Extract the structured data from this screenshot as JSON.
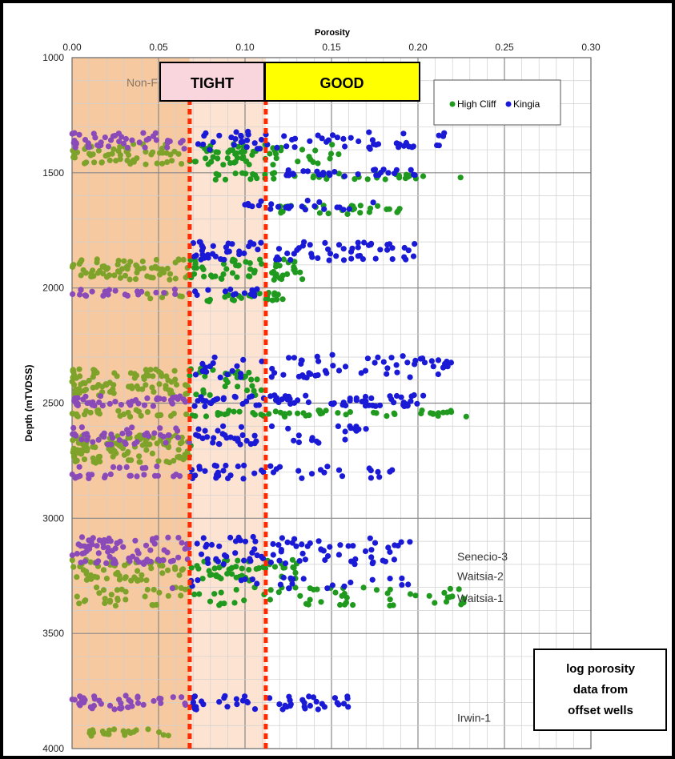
{
  "chart_data": {
    "type": "scatter",
    "title": "Porosity",
    "xlabel": "Porosity",
    "ylabel": "Depth (mTVDSS)",
    "xlim": [
      0.0,
      0.3
    ],
    "ylim": [
      1000,
      4000
    ],
    "x_ticks": [
      "0.00",
      "0.05",
      "0.10",
      "0.15",
      "0.20",
      "0.25",
      "0.30"
    ],
    "y_ticks": [
      "1000",
      "1500",
      "2000",
      "2500",
      "3000",
      "3500",
      "4000"
    ],
    "y_inverted": true,
    "grid": true,
    "legend_position": "top-right",
    "zones": [
      {
        "label": "Non-Res",
        "visible_text": "Non-F",
        "x_from": 0.0,
        "x_to": 0.068,
        "color": "#f7c9a0"
      },
      {
        "label": "TIGHT",
        "x_from": 0.068,
        "x_to": 0.112,
        "color": "#fde4d2"
      },
      {
        "label": "GOOD",
        "x_from": 0.112,
        "x_to": 0.2,
        "color": "#ffff00"
      }
    ],
    "cutoffs": [
      0.068,
      0.112
    ],
    "series": [
      {
        "name": "High Cliff",
        "color": "#1f9a1f",
        "clusters": [
          {
            "depth": 1420,
            "spread": 45,
            "x_min": 0.0,
            "x_max": 0.155,
            "n": 120
          },
          {
            "depth": 1515,
            "spread": 15,
            "x_min": 0.08,
            "x_max": 0.23,
            "n": 40
          },
          {
            "depth": 1660,
            "spread": 20,
            "x_min": 0.12,
            "x_max": 0.19,
            "n": 30
          },
          {
            "depth": 1920,
            "spread": 45,
            "x_min": 0.0,
            "x_max": 0.135,
            "n": 130
          },
          {
            "depth": 2040,
            "spread": 20,
            "x_min": 0.04,
            "x_max": 0.125,
            "n": 30
          },
          {
            "depth": 2410,
            "spread": 60,
            "x_min": 0.0,
            "x_max": 0.11,
            "n": 120
          },
          {
            "depth": 2545,
            "spread": 15,
            "x_min": 0.0,
            "x_max": 0.237,
            "n": 80
          },
          {
            "depth": 2700,
            "spread": 60,
            "x_min": 0.0,
            "x_max": 0.07,
            "n": 120
          },
          {
            "depth": 3230,
            "spread": 50,
            "x_min": 0.0,
            "x_max": 0.13,
            "n": 110
          },
          {
            "depth": 3340,
            "spread": 40,
            "x_min": 0.0,
            "x_max": 0.235,
            "n": 90
          },
          {
            "depth": 3930,
            "spread": 15,
            "x_min": 0.01,
            "x_max": 0.06,
            "n": 25
          }
        ]
      },
      {
        "name": "Kingia",
        "color": "#1a1ad6",
        "clusters": [
          {
            "depth": 1360,
            "spread": 40,
            "x_min": 0.0,
            "x_max": 0.218,
            "n": 110
          },
          {
            "depth": 1500,
            "spread": 15,
            "x_min": 0.12,
            "x_max": 0.2,
            "n": 30
          },
          {
            "depth": 1640,
            "spread": 20,
            "x_min": 0.1,
            "x_max": 0.18,
            "n": 25
          },
          {
            "depth": 1840,
            "spread": 40,
            "x_min": 0.07,
            "x_max": 0.2,
            "n": 80
          },
          {
            "depth": 2020,
            "spread": 15,
            "x_min": 0.0,
            "x_max": 0.11,
            "n": 35
          },
          {
            "depth": 2340,
            "spread": 50,
            "x_min": 0.07,
            "x_max": 0.22,
            "n": 70
          },
          {
            "depth": 2490,
            "spread": 25,
            "x_min": 0.0,
            "x_max": 0.205,
            "n": 120
          },
          {
            "depth": 2640,
            "spread": 40,
            "x_min": 0.0,
            "x_max": 0.17,
            "n": 90
          },
          {
            "depth": 2800,
            "spread": 30,
            "x_min": 0.0,
            "x_max": 0.19,
            "n": 70
          },
          {
            "depth": 3140,
            "spread": 60,
            "x_min": 0.0,
            "x_max": 0.196,
            "n": 160
          },
          {
            "depth": 3280,
            "spread": 25,
            "x_min": 0.05,
            "x_max": 0.203,
            "n": 25
          },
          {
            "depth": 3800,
            "spread": 30,
            "x_min": 0.0,
            "x_max": 0.16,
            "n": 90
          }
        ]
      }
    ],
    "blend_color": "#8a4ab8",
    "blend_color_green": "#7fa32a",
    "well_labels": [
      {
        "text": "Senecio-3",
        "x": 0.225,
        "depth": 3170
      },
      {
        "text": "Waitsia-2",
        "x": 0.225,
        "depth": 3255
      },
      {
        "text": "Waitsia-1",
        "x": 0.225,
        "depth": 3350
      },
      {
        "text": "Irwin-1",
        "x": 0.225,
        "depth": 3870
      }
    ]
  },
  "legend": {
    "items": [
      {
        "name": "High Cliff",
        "color": "#1f9a1f"
      },
      {
        "name": "Kingia",
        "color": "#1a1ad6"
      }
    ]
  },
  "annotation": {
    "line1": "log porosity",
    "line2": "data from",
    "line3": "offset wells"
  }
}
